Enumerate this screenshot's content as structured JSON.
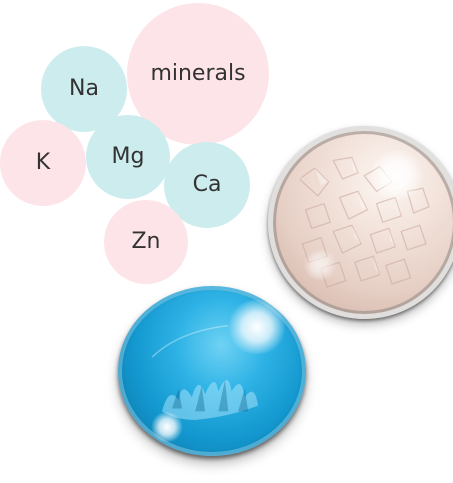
{
  "colors": {
    "bubble_pink": "#fde4e8",
    "bubble_cyan": "#cdecee",
    "label_text": "#333333",
    "salt_tint": "#efdcd3",
    "water_blue": "#1ea7df"
  },
  "bubbles": [
    {
      "id": "minerals",
      "label": "minerals",
      "color": "pink"
    },
    {
      "id": "na",
      "label": "Na",
      "color": "cyan"
    },
    {
      "id": "k",
      "label": "K",
      "color": "pink"
    },
    {
      "id": "mg",
      "label": "Mg",
      "color": "cyan"
    },
    {
      "id": "ca",
      "label": "Ca",
      "color": "cyan"
    },
    {
      "id": "zn",
      "label": "Zn",
      "color": "pink"
    }
  ],
  "images": {
    "salt": "salt-crystals-orb",
    "water": "water-droplet-orb"
  }
}
